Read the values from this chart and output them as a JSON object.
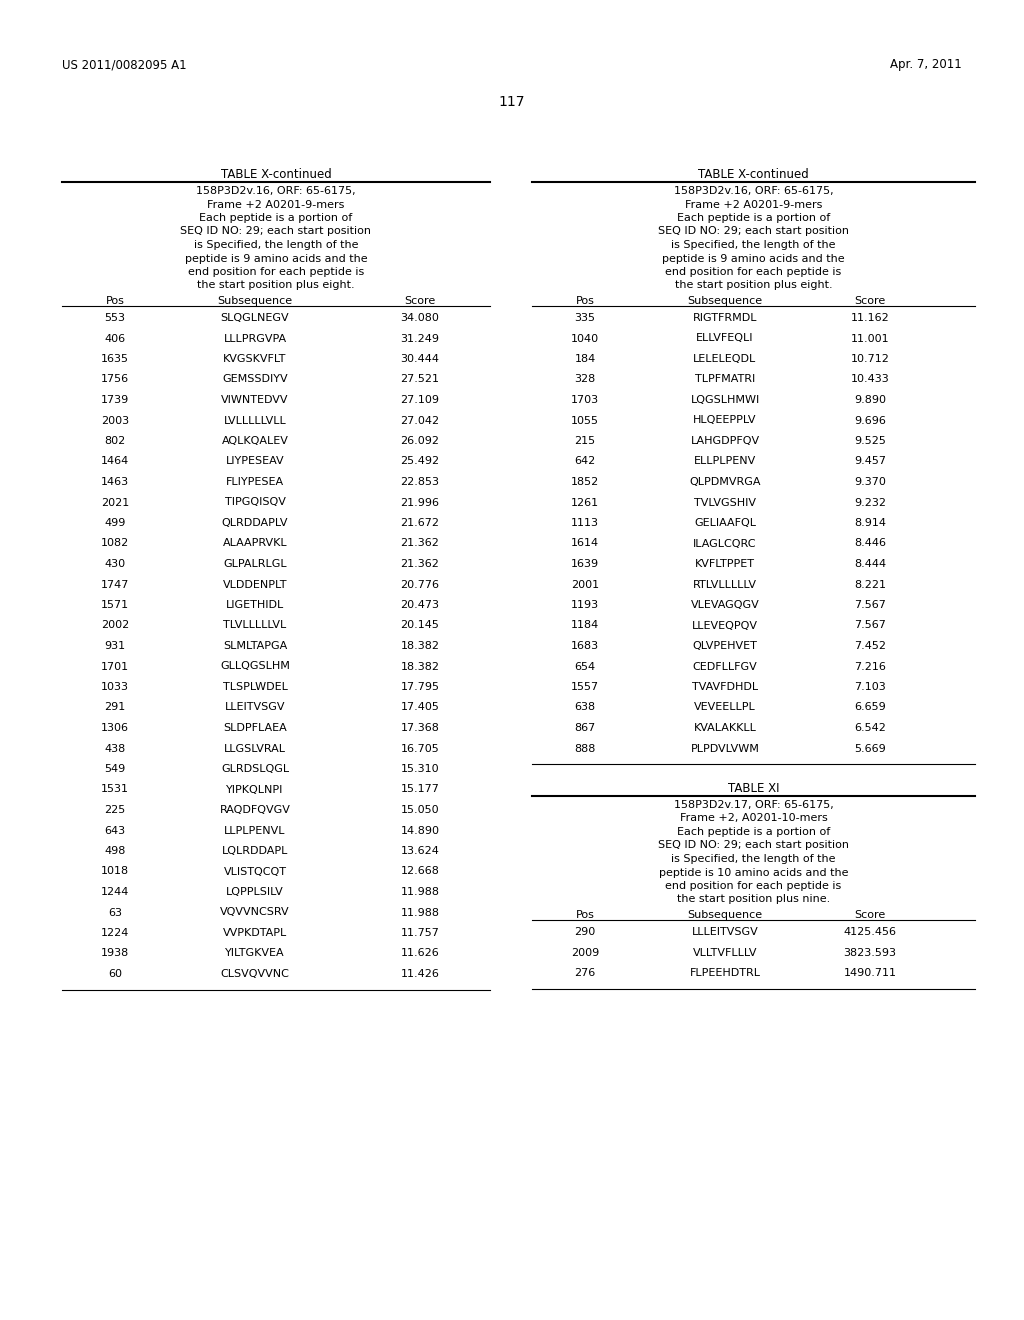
{
  "header_left": "US 2011/0082095 A1",
  "header_right": "Apr. 7, 2011",
  "page_number": "117",
  "bg_color": "#ffffff",
  "left_table_title": "TABLE X-continued",
  "left_table_header_lines": [
    "158P3D2v.16, ORF: 65-6175,",
    "Frame +2 A0201-9-mers",
    "Each peptide is a portion of",
    "SEQ ID NO: 29; each start position",
    "is Specified, the length of the",
    "peptide is 9 amino acids and the",
    "end position for each peptide is",
    "the start position plus eight."
  ],
  "left_col_headers": [
    "Pos",
    "Subsequence",
    "Score"
  ],
  "left_data": [
    [
      "553",
      "SLQGLNEGV",
      "34.080"
    ],
    [
      "406",
      "LLLPRGVPA",
      "31.249"
    ],
    [
      "1635",
      "KVGSKVFLT",
      "30.444"
    ],
    [
      "1756",
      "GEMSSDIYV",
      "27.521"
    ],
    [
      "1739",
      "VIWNTEDVV",
      "27.109"
    ],
    [
      "2003",
      "LVLLLLLVLL",
      "27.042"
    ],
    [
      "802",
      "AQLKQALEV",
      "26.092"
    ],
    [
      "1464",
      "LIYPESEAV",
      "25.492"
    ],
    [
      "1463",
      "FLIYPESEA",
      "22.853"
    ],
    [
      "2021",
      "TIPGQISQV",
      "21.996"
    ],
    [
      "499",
      "QLRDDAPLV",
      "21.672"
    ],
    [
      "1082",
      "ALAAPRVKL",
      "21.362"
    ],
    [
      "430",
      "GLPALRLGL",
      "21.362"
    ],
    [
      "1747",
      "VLDDENPLT",
      "20.776"
    ],
    [
      "1571",
      "LIGETHIDL",
      "20.473"
    ],
    [
      "2002",
      "TLVLLLLLVL",
      "20.145"
    ],
    [
      "931",
      "SLMLTAPGA",
      "18.382"
    ],
    [
      "1701",
      "GLLQGSLHM",
      "18.382"
    ],
    [
      "1033",
      "TLSPLWDEL",
      "17.795"
    ],
    [
      "291",
      "LLEITVSGV",
      "17.405"
    ],
    [
      "1306",
      "SLDPFLAEA",
      "17.368"
    ],
    [
      "438",
      "LLGSLVRAL",
      "16.705"
    ],
    [
      "549",
      "GLRDSLQGL",
      "15.310"
    ],
    [
      "1531",
      "YIPKQLNPI",
      "15.177"
    ],
    [
      "225",
      "RAQDFQVGV",
      "15.050"
    ],
    [
      "643",
      "LLPLPENVL",
      "14.890"
    ],
    [
      "498",
      "LQLRDDAPL",
      "13.624"
    ],
    [
      "1018",
      "VLISTQCQT",
      "12.668"
    ],
    [
      "1244",
      "LQPPLSILV",
      "11.988"
    ],
    [
      "63",
      "VQVVNCSRV",
      "11.988"
    ],
    [
      "1224",
      "VVPKDTAPL",
      "11.757"
    ],
    [
      "1938",
      "YILTGKVEA",
      "11.626"
    ],
    [
      "60",
      "CLSVQVVNC",
      "11.426"
    ]
  ],
  "right_table_title": "TABLE X-continued",
  "right_table_header_lines": [
    "158P3D2v.16, ORF: 65-6175,",
    "Frame +2 A0201-9-mers",
    "Each peptide is a portion of",
    "SEQ ID NO: 29; each start position",
    "is Specified, the length of the",
    "peptide is 9 amino acids and the",
    "end position for each peptide is",
    "the start position plus eight."
  ],
  "right_col_headers": [
    "Pos",
    "Subsequence",
    "Score"
  ],
  "right_data": [
    [
      "335",
      "RIGTFRMDL",
      "11.162"
    ],
    [
      "1040",
      "ELLVFEQLI",
      "11.001"
    ],
    [
      "184",
      "LELELEQDL",
      "10.712"
    ],
    [
      "328",
      "TLPFMATRI",
      "10.433"
    ],
    [
      "1703",
      "LQGSLHMWI",
      "9.890"
    ],
    [
      "1055",
      "HLQEEPPLV",
      "9.696"
    ],
    [
      "215",
      "LAHGDPFQV",
      "9.525"
    ],
    [
      "642",
      "ELLPLPENV",
      "9.457"
    ],
    [
      "1852",
      "QLPDMVRGA",
      "9.370"
    ],
    [
      "1261",
      "TVLVGSHIV",
      "9.232"
    ],
    [
      "1113",
      "GELIAAFQL",
      "8.914"
    ],
    [
      "1614",
      "ILAGLCQRC",
      "8.446"
    ],
    [
      "1639",
      "KVFLTPPET",
      "8.444"
    ],
    [
      "2001",
      "RTLVLLLLLV",
      "8.221"
    ],
    [
      "1193",
      "VLEVAGQGV",
      "7.567"
    ],
    [
      "1184",
      "LLEVEQPQV",
      "7.567"
    ],
    [
      "1683",
      "QLVPEHVET",
      "7.452"
    ],
    [
      "654",
      "CEDFLLFGV",
      "7.216"
    ],
    [
      "1557",
      "TVAVFDHDL",
      "7.103"
    ],
    [
      "638",
      "VEVEELLPL",
      "6.659"
    ],
    [
      "867",
      "KVALAKKLL",
      "6.542"
    ],
    [
      "888",
      "PLPDVLVWM",
      "5.669"
    ]
  ],
  "table_xi_title": "TABLE XI",
  "table_xi_header_lines": [
    "158P3D2v.17, ORF: 65-6175,",
    "Frame +2, A0201-10-mers",
    "Each peptide is a portion of",
    "SEQ ID NO: 29; each start position",
    "is Specified, the length of the",
    "peptide is 10 amino acids and the",
    "end position for each peptide is",
    "the start position plus nine."
  ],
  "table_xi_col_headers": [
    "Pos",
    "Subsequence",
    "Score"
  ],
  "table_xi_data": [
    [
      "290",
      "LLLEITVSGV",
      "4125.456"
    ],
    [
      "2009",
      "VLLTVFLLLV",
      "3823.593"
    ],
    [
      "276",
      "FLPEEHDTRL",
      "1490.711"
    ]
  ]
}
